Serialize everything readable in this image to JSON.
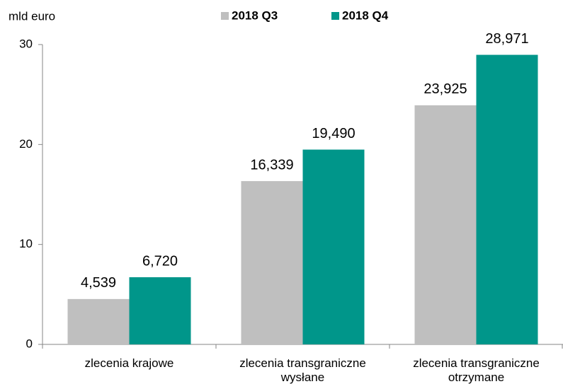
{
  "chart_data": {
    "type": "bar",
    "y_label": "mld euro",
    "categories": [
      "zlecenia krajowe",
      "zlecenia transgraniczne wysłane",
      "zlecenia transgraniczne otrzymane"
    ],
    "series": [
      {
        "name": "2018 Q3",
        "color": "#bfbfbf",
        "values": [
          4.539,
          16.339,
          23.925
        ],
        "value_labels": [
          "4,539",
          "16,339",
          "23,925"
        ]
      },
      {
        "name": "2018 Q4",
        "color": "#00968a",
        "values": [
          6.72,
          19.49,
          28.971
        ],
        "value_labels": [
          "6,720",
          "19,490",
          "28,971"
        ]
      }
    ],
    "ylim": [
      0,
      30
    ],
    "yticks": [
      0,
      10,
      20,
      30
    ],
    "legend": "top"
  }
}
